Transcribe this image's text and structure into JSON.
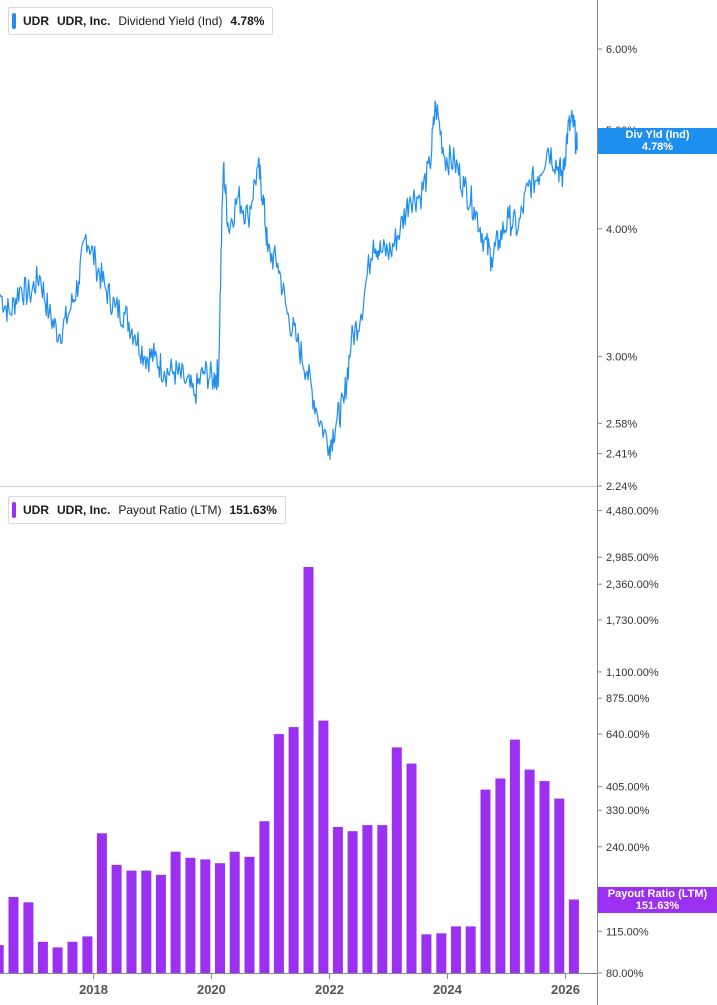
{
  "colors": {
    "dividend_series": "#1f8fef",
    "payout_series": "#9b30f0",
    "axis": "#888888",
    "tick_text": "#333333",
    "divider": "#cccccc"
  },
  "top_panel": {
    "legend": {
      "symbol": "UDR",
      "company": "UDR, Inc.",
      "metric": "Dividend Yield (Ind)",
      "value": "4.78%"
    },
    "tag": {
      "label": "Div Yld (Ind)",
      "value": "4.78%"
    }
  },
  "bottom_panel": {
    "legend": {
      "symbol": "UDR",
      "company": "UDR, Inc.",
      "metric": "Payout Ratio (LTM)",
      "value": "151.63%"
    },
    "tag": {
      "label": "Payout Ratio (LTM)",
      "value": "151.63%"
    }
  },
  "chart_data": [
    {
      "type": "line",
      "series": [
        {
          "name": "Dividend Yield (Ind)",
          "points": [
            [
              "2016-06-01",
              3.45
            ],
            [
              "2016-08-01",
              3.3
            ],
            [
              "2016-10-01",
              3.5
            ],
            [
              "2016-12-01",
              3.45
            ],
            [
              "2017-02-01",
              3.6
            ],
            [
              "2017-04-01",
              3.3
            ],
            [
              "2017-06-01",
              3.15
            ],
            [
              "2017-08-01",
              3.3
            ],
            [
              "2017-10-01",
              3.55
            ],
            [
              "2017-11-15",
              3.95
            ],
            [
              "2018-01-15",
              3.7
            ],
            [
              "2018-03-15",
              3.5
            ],
            [
              "2018-05-15",
              3.35
            ],
            [
              "2018-07-15",
              3.3
            ],
            [
              "2018-09-15",
              3.15
            ],
            [
              "2018-11-15",
              3.0
            ],
            [
              "2019-01-15",
              3.0
            ],
            [
              "2019-03-15",
              2.9
            ],
            [
              "2019-05-15",
              2.9
            ],
            [
              "2019-07-15",
              2.85
            ],
            [
              "2019-09-15",
              2.75
            ],
            [
              "2019-11-15",
              2.9
            ],
            [
              "2020-01-15",
              2.85
            ],
            [
              "2020-02-15",
              2.9
            ],
            [
              "2020-03-15",
              4.6
            ],
            [
              "2020-04-15",
              4.0
            ],
            [
              "2020-06-15",
              4.3
            ],
            [
              "2020-08-15",
              4.1
            ],
            [
              "2020-10-15",
              4.6
            ],
            [
              "2020-11-15",
              4.3
            ],
            [
              "2020-12-15",
              3.8
            ],
            [
              "2021-02-15",
              3.7
            ],
            [
              "2021-04-15",
              3.3
            ],
            [
              "2021-06-15",
              3.1
            ],
            [
              "2021-08-15",
              2.9
            ],
            [
              "2021-10-15",
              2.65
            ],
            [
              "2021-12-31",
              2.45
            ],
            [
              "2022-02-15",
              2.6
            ],
            [
              "2022-03-31",
              2.7
            ],
            [
              "2022-05-15",
              3.1
            ],
            [
              "2022-07-15",
              3.3
            ],
            [
              "2022-09-30",
              3.9
            ],
            [
              "2022-11-15",
              3.8
            ],
            [
              "2023-01-15",
              3.8
            ],
            [
              "2023-03-15",
              4.0
            ],
            [
              "2023-05-15",
              4.3
            ],
            [
              "2023-07-15",
              4.3
            ],
            [
              "2023-09-15",
              4.6
            ],
            [
              "2023-10-20",
              5.3
            ],
            [
              "2023-12-15",
              4.7
            ],
            [
              "2024-02-15",
              4.65
            ],
            [
              "2024-04-15",
              4.4
            ],
            [
              "2024-06-15",
              4.2
            ],
            [
              "2024-08-15",
              3.9
            ],
            [
              "2024-09-30",
              3.75
            ],
            [
              "2024-11-15",
              3.9
            ],
            [
              "2025-01-15",
              4.1
            ],
            [
              "2025-03-15",
              4.0
            ],
            [
              "2025-05-15",
              4.4
            ],
            [
              "2025-07-15",
              4.5
            ],
            [
              "2025-09-15",
              4.8
            ],
            [
              "2025-11-15",
              4.6
            ],
            [
              "2025-12-15",
              4.5
            ],
            [
              "2026-01-15",
              5.0
            ],
            [
              "2026-02-15",
              5.1
            ],
            [
              "2026-03-15",
              4.78
            ]
          ]
        }
      ],
      "x_range": [
        "2016-06-01",
        "2026-07-15"
      ],
      "ylim": [
        2.24,
        6.7
      ],
      "y_scale": "log",
      "y_ticks": [
        "6.00%",
        "5.00%",
        "4.00%",
        "3.00%",
        "2.58%",
        "2.41%",
        "2.24%"
      ],
      "y_tick_values": [
        6.0,
        5.0,
        4.0,
        3.0,
        2.58,
        2.41,
        2.24
      ]
    },
    {
      "type": "bar",
      "series": [
        {
          "name": "Payout Ratio (LTM)",
          "points": [
            [
              "2016-06-30",
              102
            ],
            [
              "2016-09-30",
              155
            ],
            [
              "2016-12-31",
              148
            ],
            [
              "2017-03-31",
              105
            ],
            [
              "2017-06-30",
              100
            ],
            [
              "2017-09-30",
              105
            ],
            [
              "2017-12-31",
              110
            ],
            [
              "2018-03-31",
              270
            ],
            [
              "2018-06-30",
              205
            ],
            [
              "2018-09-30",
              195
            ],
            [
              "2018-12-31",
              195
            ],
            [
              "2019-03-31",
              188
            ],
            [
              "2019-06-30",
              230
            ],
            [
              "2019-09-30",
              218
            ],
            [
              "2019-12-31",
              215
            ],
            [
              "2020-03-31",
              208
            ],
            [
              "2020-06-30",
              230
            ],
            [
              "2020-09-30",
              220
            ],
            [
              "2020-12-31",
              300
            ],
            [
              "2021-03-31",
              640
            ],
            [
              "2021-06-30",
              680
            ],
            [
              "2021-09-30",
              2740
            ],
            [
              "2021-12-31",
              720
            ],
            [
              "2022-03-31",
              285
            ],
            [
              "2022-06-30",
              275
            ],
            [
              "2022-09-30",
              290
            ],
            [
              "2022-12-31",
              290
            ],
            [
              "2023-03-31",
              570
            ],
            [
              "2023-06-30",
              495
            ],
            [
              "2023-09-30",
              112
            ],
            [
              "2023-12-31",
              113
            ],
            [
              "2024-03-31",
              120
            ],
            [
              "2024-06-30",
              120
            ],
            [
              "2024-09-30",
              395
            ],
            [
              "2024-12-31",
              435
            ],
            [
              "2025-03-31",
              610
            ],
            [
              "2025-06-30",
              470
            ],
            [
              "2025-09-30",
              425
            ],
            [
              "2025-12-31",
              365
            ],
            [
              "2026-03-31",
              151.63
            ]
          ]
        }
      ],
      "x_range": [
        "2016-06-01",
        "2026-07-15"
      ],
      "ylim": [
        80,
        5500
      ],
      "y_scale": "log",
      "y_ticks": [
        "4,480.00%",
        "2,985.00%",
        "2,360.00%",
        "1,730.00%",
        "1,100.00%",
        "875.00%",
        "640.00%",
        "405.00%",
        "330.00%",
        "240.00%",
        "115.00%",
        "80.00%"
      ],
      "y_tick_values": [
        4480,
        2985,
        2360,
        1730,
        1100,
        875,
        640,
        405,
        330,
        240,
        115,
        80
      ],
      "x_ticks": [
        "2018",
        "2020",
        "2022",
        "2024",
        "2026"
      ]
    }
  ]
}
